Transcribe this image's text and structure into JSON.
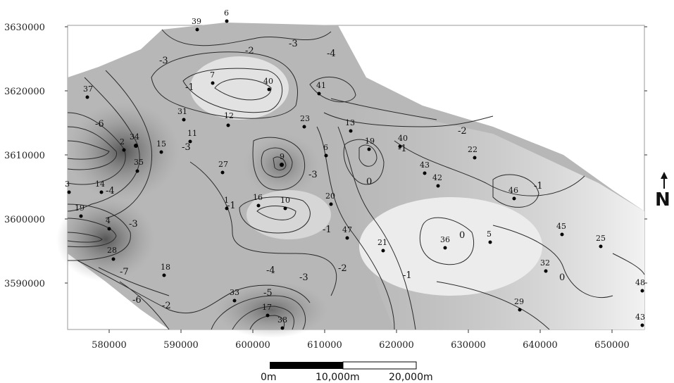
{
  "map": {
    "y_ticks": [
      "3630000",
      "3620000",
      "3610000",
      "3600000",
      "3590000"
    ],
    "x_ticks": [
      "580000",
      "590000",
      "600000",
      "610000",
      "620000",
      "630000",
      "640000",
      "650000"
    ],
    "contour_labels": [
      "-3",
      "-2",
      "-3",
      "-4",
      "-1",
      "-6",
      "-3",
      "-1",
      "-3",
      "-2",
      "-1",
      "-3",
      "-4",
      "-1",
      "-2",
      "0",
      "-5",
      "-4",
      "-3",
      "-7",
      "-6",
      "-2",
      "-1",
      "0",
      "0",
      "-1"
    ],
    "wells": [
      "39",
      "6",
      "37",
      "7",
      "40",
      "41",
      "31",
      "12",
      "23",
      "13",
      "34",
      "11",
      "15",
      "2",
      "35",
      "27",
      "9",
      "6",
      "19",
      "40",
      "22",
      "3",
      "14",
      "43",
      "42",
      "46",
      "19",
      "1",
      "16",
      "10",
      "20",
      "4",
      "47",
      "45",
      "25",
      "28",
      "36",
      "5",
      "21",
      "18",
      "32",
      "33",
      "17",
      "38",
      "29",
      "48",
      "43"
    ],
    "scale_bar": {
      "labels": [
        "0m",
        "10,000m",
        "20,000m"
      ]
    },
    "north_arrow": {
      "label": "N"
    },
    "colors": {
      "dark": "#8a8a8a",
      "mid": "#b0b0b0",
      "light": "#d8d8d8",
      "lightest": "#efefef",
      "line": "#2a2a2a"
    }
  }
}
